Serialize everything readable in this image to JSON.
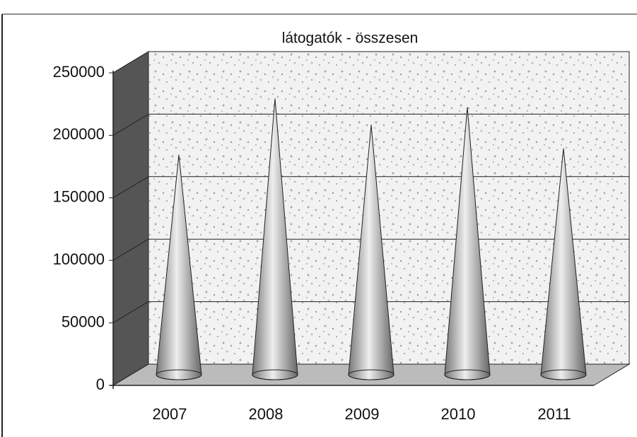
{
  "chart_data": {
    "type": "cone",
    "title": "látogatók - összesen",
    "categories": [
      "2007",
      "2008",
      "2009",
      "2010",
      "2011"
    ],
    "values": [
      176000,
      221000,
      200000,
      214000,
      181000
    ],
    "color": "#b8b8b8",
    "ylim": [
      0,
      250000
    ],
    "yticks": [
      0,
      50000,
      100000,
      150000,
      200000,
      250000
    ],
    "grid": true
  }
}
